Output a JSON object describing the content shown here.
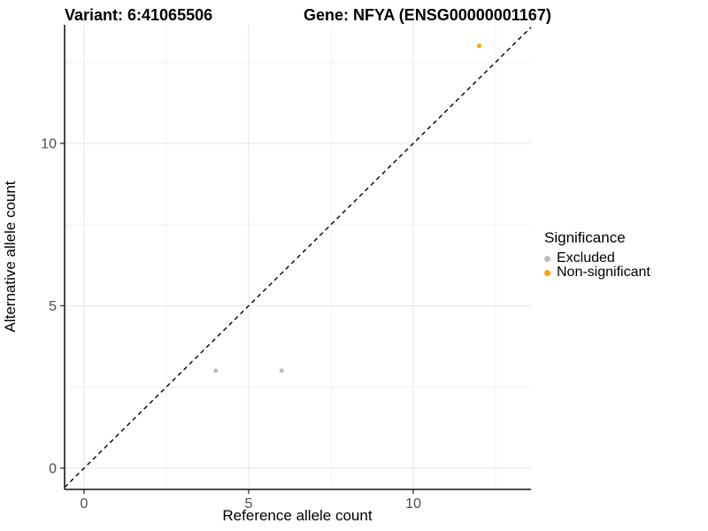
{
  "titles": {
    "left": "Variant: 6:41065506",
    "right": "Gene: NFYA (ENSG00000001167)"
  },
  "chart_data": {
    "type": "scatter",
    "xlabel": "Reference allele count",
    "ylabel": "Alternative allele count",
    "x_ticks": [
      0,
      5,
      10
    ],
    "y_ticks": [
      0,
      5,
      10
    ],
    "x_minor_ticks": [
      2.5,
      7.5,
      12.5
    ],
    "y_minor_ticks": [
      2.5,
      7.5,
      12.5
    ],
    "xlim": [
      -0.59,
      13.58
    ],
    "ylim": [
      -0.65,
      13.65
    ],
    "grid": true,
    "legend": {
      "title": "Significance",
      "position": "right"
    },
    "series": [
      {
        "name": "Excluded",
        "color": "#BEBEBE",
        "points": [
          [
            4,
            3
          ],
          [
            6,
            3
          ]
        ]
      },
      {
        "name": "Non-significant",
        "color": "#FFA500",
        "points": [
          [
            12,
            13
          ]
        ]
      }
    ],
    "reference_line": {
      "type": "identity",
      "style": "dashed",
      "color": "#000000"
    }
  }
}
